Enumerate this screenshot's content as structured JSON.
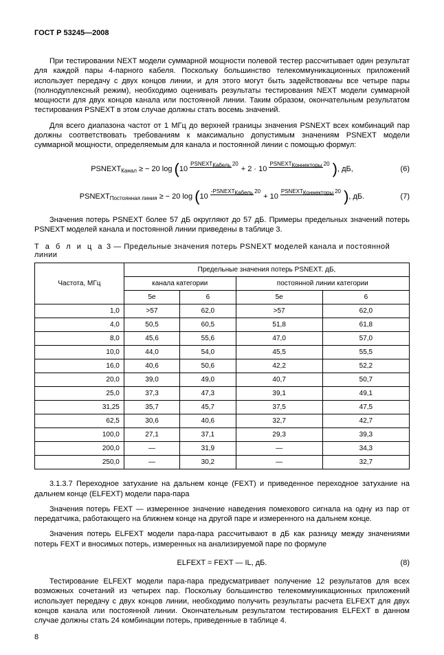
{
  "header": "ГОСТ Р 53245—2008",
  "para1": "При тестировании NEXT модели суммарной мощности полевой тестер рассчитывает один результат для каждой пары 4-парного кабеля. Поскольку большинство телекоммуникационных приложений использует передачу с двух концов линии, и для этого могут быть задействованы все четыре пары (полнодуплексный режим), необходимо оценивать результаты тестирования NEXT модели суммарной мощности для двух концов канала или постоянной линии. Таким образом, окончательным результатом тестирования PSNEXT в этом случае должны стать восемь значений.",
  "para2": "Для всего диапазона частот от 1 МГц до верхней границы значения PSNEXT всех комбинаций пар должны соответствовать требованиям к максимально допустимым значениям PSNEXT модели суммарной мощности, определяемым для канала и постоянной линии с помощью формул:",
  "formula6": {
    "lhs_base": "PSNEXT",
    "lhs_sub": "Канал",
    "mid": " ≥ − 20 log ",
    "b1_top": "PSNEXT",
    "b1_sub": "Кабель",
    "b1_bot": "20",
    "plus": " + 2 · 10 ",
    "b2_top": "PSNEXT",
    "b2_sub": "Коннекторы",
    "b2_bot": "20",
    "tail": ", дБ,",
    "num": "(6)"
  },
  "formula7": {
    "lhs_base": "PSNEXT",
    "lhs_sub": "Постоянная линия",
    "mid": " ≥ − 20 log ",
    "b1_top": "-PSNEXT",
    "b1_sub": "Кабель",
    "b1_bot": "20",
    "plus": " + 10 ",
    "b2_top": "PSNEXT",
    "b2_sub": "Коннекторы",
    "b2_bot": "20",
    "tail": ", дБ.",
    "num": "(7)"
  },
  "para3": "Значения потерь PSNEXT более 57 дБ округляют до 57 дБ. Примеры предельных значений потерь PSNEXT моделей канала и постоянной линии приведены в таблице 3.",
  "table_caption_prefix": "Т а б л и ц а",
  "table_caption_rest": "  3 — Предельные значения потерь PSNEXT моделей канала и постоянной линии",
  "table": {
    "col1_header": "Частота, МГц",
    "group_header": "Предельные значения потерь PSNEXT.  дБ,",
    "sub1": "канала категории",
    "sub2": "постоянной линии категории",
    "cat_a": "5e",
    "cat_b": "6",
    "rows": [
      [
        "1,0",
        ">57",
        "62,0",
        ">57",
        "62,0"
      ],
      [
        "4,0",
        "50,5",
        "60,5",
        "51,8",
        "61,8"
      ],
      [
        "8,0",
        "45,6",
        "55,6",
        "47,0",
        "57,0"
      ],
      [
        "10,0",
        "44,0",
        "54,0",
        "45,5",
        "55,5"
      ],
      [
        "16,0",
        "40,6",
        "50,6",
        "42,2",
        "52,2"
      ],
      [
        "20,0",
        "39,0",
        "49,0",
        "40,7",
        "50,7"
      ],
      [
        "25,0",
        "37,3",
        "47,3",
        "39,1",
        "49,1"
      ],
      [
        "31,25",
        "35,7",
        "45,7",
        "37,5",
        "47,5"
      ],
      [
        "62,5",
        "30,6",
        "40,6",
        "32,7",
        "42,7"
      ],
      [
        "100,0",
        "27,1",
        "37,1",
        "29,3",
        "39,3"
      ],
      [
        "200,0",
        "—",
        "31,9",
        "—",
        "34,3"
      ],
      [
        "250,0",
        "—",
        "30,2",
        "—",
        "32,7"
      ]
    ]
  },
  "para4": "3.1.3.7 Переходное затухание на дальнем конце (FEXT) и приведенное переходное затухание на дальнем конце (ELFEXT) модели пара-пара",
  "para5": "Значения потерь FEXT — измеренное значение наведения помехового сигнала на одну из пар от передатчика, работающего на ближнем конце на другой паре и измеренного на дальнем конце.",
  "para6": "Значения потерь ELFEXT модели пара-пара рассчитывают в дБ как разницу между значениями потерь FEXT и вносимых потерь, измеренных на анализируемой паре по формуле",
  "formula8": {
    "text": "ELFEXT = FEXT — IL, дБ.",
    "num": "(8)"
  },
  "para7": "Тестирование ELFEXT модели пара-пара предусматривает получение 12 результатов для всех возможных сочетаний из четырех пар. Поскольку большинство телекоммуникационных приложений использует передачу с двух концов линии, необходимо получить результаты расчета ELFEXT для двух концов канала или постоянной линии. Окончательным результатом тестирования ELFEXT в данном случае должны стать 24 комбинации потерь, приведенные в таблице 4.",
  "page_num": "8"
}
